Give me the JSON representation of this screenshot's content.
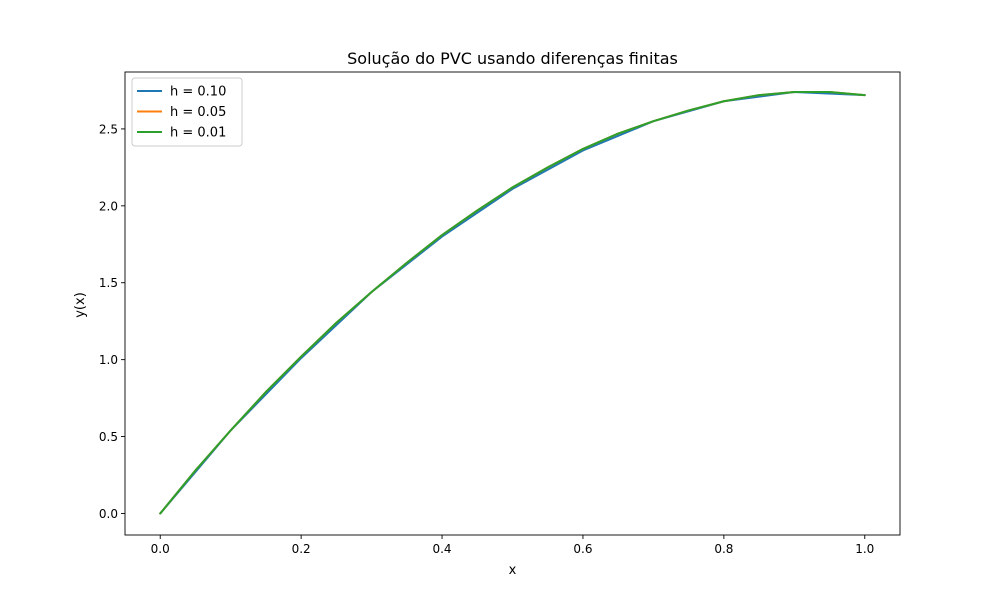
{
  "chart_data": {
    "type": "line",
    "title": "Solução do PVC usando diferenças finitas",
    "xlabel": "x",
    "ylabel": "y(x)",
    "xlim": [
      -0.05,
      1.05
    ],
    "ylim": [
      -0.14,
      2.87
    ],
    "xticks": [
      0.0,
      0.2,
      0.4,
      0.6,
      0.8,
      1.0
    ],
    "xtick_labels": [
      "0.0",
      "0.2",
      "0.4",
      "0.6",
      "0.8",
      "1.0"
    ],
    "yticks": [
      0.0,
      0.5,
      1.0,
      1.5,
      2.0,
      2.5
    ],
    "ytick_labels": [
      "0.0",
      "0.5",
      "1.0",
      "1.5",
      "2.0",
      "2.5"
    ],
    "grid": false,
    "legend_position": "upper-left",
    "series": [
      {
        "name": "h = 0.10",
        "color": "#1f77b4",
        "x": [
          0.0,
          0.1,
          0.2,
          0.3,
          0.4,
          0.5,
          0.6,
          0.7,
          0.8,
          0.9,
          1.0
        ],
        "y": [
          0.0,
          0.54,
          1.01,
          1.44,
          1.8,
          2.11,
          2.36,
          2.55,
          2.68,
          2.74,
          2.72
        ]
      },
      {
        "name": "h = 0.05",
        "color": "#ff7f0e",
        "x": [
          0.0,
          0.05,
          0.1,
          0.15,
          0.2,
          0.25,
          0.3,
          0.35,
          0.4,
          0.45,
          0.5,
          0.55,
          0.6,
          0.65,
          0.7,
          0.75,
          0.8,
          0.85,
          0.9,
          0.95,
          1.0
        ],
        "y": [
          0.0,
          0.28,
          0.54,
          0.79,
          1.02,
          1.24,
          1.44,
          1.63,
          1.81,
          1.97,
          2.12,
          2.25,
          2.37,
          2.47,
          2.55,
          2.62,
          2.68,
          2.72,
          2.74,
          2.74,
          2.72
        ]
      },
      {
        "name": "h = 0.01",
        "color": "#2ca02c",
        "x": [
          0.0,
          0.05,
          0.1,
          0.15,
          0.2,
          0.25,
          0.3,
          0.35,
          0.4,
          0.45,
          0.5,
          0.55,
          0.6,
          0.65,
          0.7,
          0.75,
          0.8,
          0.85,
          0.9,
          0.95,
          1.0
        ],
        "y": [
          0.0,
          0.28,
          0.54,
          0.79,
          1.02,
          1.24,
          1.44,
          1.63,
          1.81,
          1.97,
          2.12,
          2.25,
          2.37,
          2.47,
          2.55,
          2.62,
          2.68,
          2.72,
          2.74,
          2.74,
          2.72
        ]
      }
    ]
  }
}
